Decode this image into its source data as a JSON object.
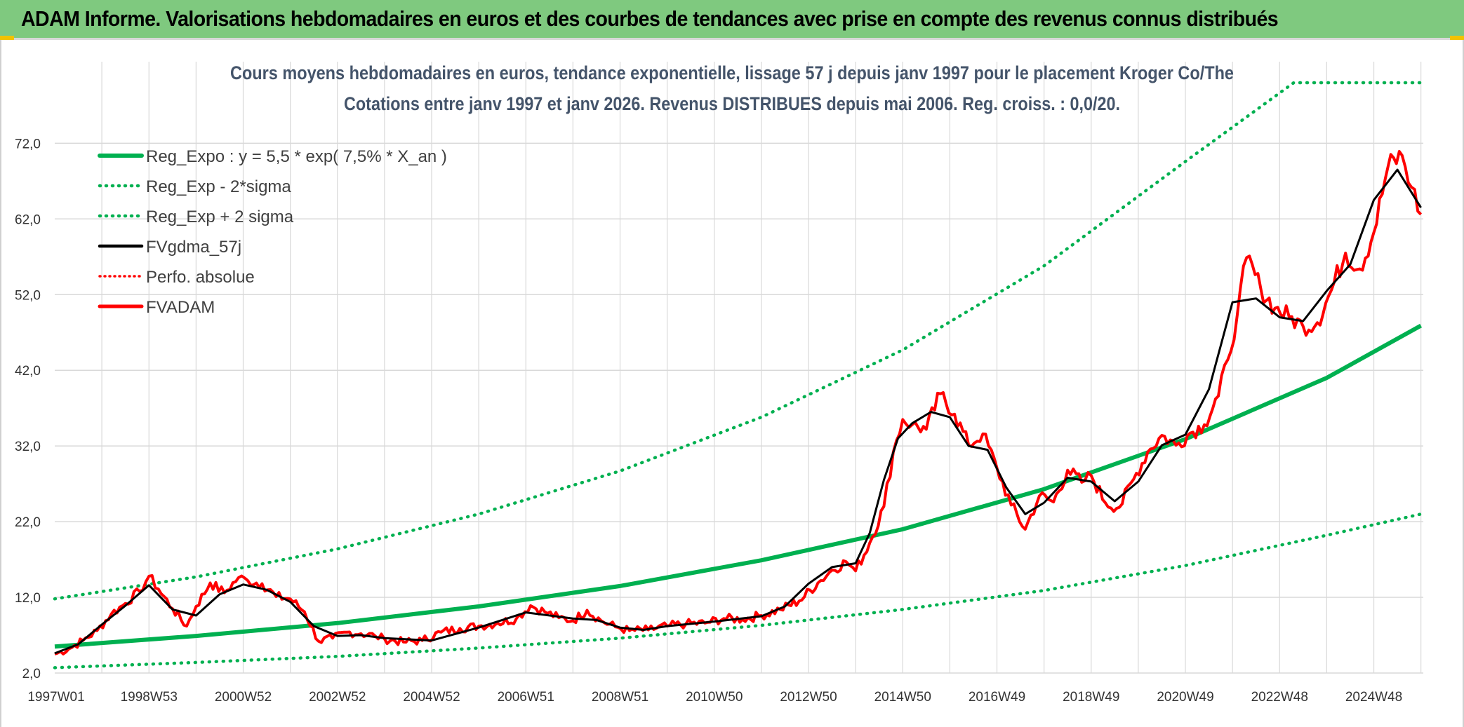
{
  "header": {
    "title": "ADAM Informe. Valorisations hebdomadaires en euros et des courbes de tendances avec prise en compte des revenus connus distribués"
  },
  "colors": {
    "header_bg": "#7fc97f",
    "reg_expo": "#00b050",
    "sigma": "#00b050",
    "fvgdma": "#000000",
    "perfo": "#ff0000",
    "fvadam": "#ff0000",
    "grid": "#d9d9d9"
  },
  "chart_data": {
    "type": "line",
    "title_line1": "Cours moyens hebdomadaires en euros, tendance exponentielle, lissage 57 j depuis janv 1997 pour le placement Kroger Co/The",
    "title_line2": "Cotations entre janv 1997 et janv 2026. Revenus DISTRIBUES depuis mai 2006. Reg. croiss. : 0,0/20.",
    "ylim": [
      2,
      80
    ],
    "xlim": [
      1997.0,
      2026.05
    ],
    "y_ticks": [
      "2,0",
      "12,0",
      "22,0",
      "32,0",
      "42,0",
      "52,0",
      "62,0",
      "72,0"
    ],
    "y_tick_values": [
      2,
      12,
      22,
      32,
      42,
      52,
      62,
      72
    ],
    "x_ticks": [
      "1997W01",
      "1998W53",
      "2000W52",
      "2002W52",
      "2004W52",
      "2006W51",
      "2008W51",
      "2010W50",
      "2012W50",
      "2014W50",
      "2016W49",
      "2018W49",
      "2020W49",
      "2022W48",
      "2024W48"
    ],
    "x_tick_values": [
      1997.0,
      1999.0,
      2001.0,
      2003.0,
      2005.0,
      2007.0,
      2009.0,
      2011.0,
      2013.0,
      2015.0,
      2017.0,
      2019.0,
      2021.0,
      2023.0,
      2025.0
    ],
    "legend": [
      {
        "label": "Reg_Expo : y = 5,5 * exp( 7,5% *  X_an )",
        "style": "solid-green"
      },
      {
        "label": "Reg_Exp - 2*sigma",
        "style": "dotted-green"
      },
      {
        "label": "Reg_Exp + 2 sigma",
        "style": "dotted-green"
      },
      {
        "label": "FVgdma_57j",
        "style": "solid-black"
      },
      {
        "label": "Perfo. absolue",
        "style": "dotted-red"
      },
      {
        "label": "FVADAM",
        "style": "solid-red"
      }
    ],
    "series": [
      {
        "name": "Reg_Expo",
        "x": [
          1997.0,
          2000.0,
          2003.0,
          2006.0,
          2009.0,
          2012.0,
          2015.0,
          2018.0,
          2021.0,
          2024.0,
          2026.0
        ],
        "values": [
          5.5,
          6.9,
          8.6,
          10.8,
          13.5,
          16.9,
          21.0,
          26.3,
          32.9,
          41.0,
          47.9
        ]
      },
      {
        "name": "Reg_Exp - 2*sigma",
        "x": [
          1997.0,
          2000.0,
          2003.0,
          2006.0,
          2009.0,
          2012.0,
          2015.0,
          2018.0,
          2021.0,
          2024.0,
          2026.0
        ],
        "values": [
          2.7,
          3.4,
          4.2,
          5.3,
          6.6,
          8.3,
          10.4,
          12.9,
          16.2,
          20.2,
          23.0
        ]
      },
      {
        "name": "Reg_Exp + 2 sigma",
        "x": [
          1997.0,
          2000.0,
          2003.0,
          2006.0,
          2009.0,
          2012.0,
          2015.0,
          2018.0,
          2021.0,
          2023.3,
          2024.0,
          2026.0
        ],
        "values": [
          11.8,
          14.7,
          18.4,
          23.0,
          28.7,
          35.8,
          44.7,
          55.8,
          69.6,
          80.0,
          80.0,
          80.0
        ]
      },
      {
        "name": "FVADAM",
        "x": [
          1997.0,
          1997.3,
          1997.6,
          1997.9,
          1998.2,
          1998.5,
          1998.8,
          1999.0,
          1999.2,
          1999.5,
          1999.8,
          2000.0,
          2000.3,
          2000.6,
          2000.9,
          2001.1,
          2001.4,
          2001.7,
          2002.0,
          2002.3,
          2002.6,
          2002.9,
          2003.2,
          2003.5,
          2003.8,
          2004.0,
          2004.4,
          2004.8,
          2005.2,
          2005.6,
          2006.0,
          2006.4,
          2006.8,
          2007.1,
          2007.4,
          2007.7,
          2008.0,
          2008.3,
          2008.6,
          2008.9,
          2009.2,
          2009.6,
          2010.0,
          2010.4,
          2010.8,
          2011.2,
          2011.6,
          2012.0,
          2012.4,
          2012.8,
          2013.2,
          2013.5,
          2013.8,
          2014.0,
          2014.3,
          2014.6,
          2014.8,
          2015.0,
          2015.2,
          2015.5,
          2015.8,
          2016.1,
          2016.4,
          2016.7,
          2017.0,
          2017.3,
          2017.6,
          2017.9,
          2018.2,
          2018.5,
          2018.8,
          2019.0,
          2019.3,
          2019.6,
          2019.9,
          2020.2,
          2020.5,
          2020.8,
          2021.1,
          2021.4,
          2021.7,
          2021.9,
          2022.1,
          2022.3,
          2022.6,
          2022.9,
          2023.2,
          2023.5,
          2023.8,
          2024.1,
          2024.4,
          2024.7,
          2025.0,
          2025.3,
          2025.6,
          2025.8,
          2026.0
        ],
        "values": [
          4.5,
          5.2,
          6.3,
          7.6,
          9.8,
          11.2,
          12.8,
          14.8,
          13.1,
          10.5,
          8.2,
          10.8,
          13.9,
          12.6,
          14.6,
          14.2,
          13.8,
          12.1,
          11.8,
          10.1,
          6.2,
          6.6,
          7.4,
          7.2,
          6.9,
          6.5,
          6.1,
          6.3,
          7.4,
          7.9,
          8.2,
          8.6,
          9.2,
          10.9,
          10.1,
          9.3,
          8.9,
          10.3,
          8.9,
          8.1,
          7.6,
          7.7,
          8.2,
          8.5,
          8.6,
          9.2,
          9.1,
          9.6,
          10.4,
          11.5,
          13.9,
          15.6,
          16.7,
          15.5,
          19.2,
          24.0,
          31.2,
          35.5,
          34.8,
          34.2,
          38.9,
          36.2,
          32.1,
          33.6,
          29.1,
          24.2,
          21.0,
          25.4,
          24.6,
          28.8,
          27.2,
          28.1,
          24.5,
          23.9,
          27.6,
          31.2,
          33.4,
          32.1,
          33.7,
          34.8,
          38.6,
          43.4,
          49.3,
          56.9,
          52.8,
          50.2,
          49.1,
          47.8,
          48.3,
          52.6,
          57.5,
          55.4,
          60.2,
          68.9,
          70.4,
          66.2,
          62.6
        ]
      },
      {
        "name": "FVgdma_57j",
        "x": [
          1997.0,
          1997.5,
          1998.0,
          1998.5,
          1999.0,
          1999.5,
          2000.0,
          2000.5,
          2001.0,
          2001.5,
          2002.0,
          2002.5,
          2003.0,
          2003.5,
          2004.0,
          2005.0,
          2006.0,
          2007.0,
          2008.0,
          2008.5,
          2009.0,
          2009.5,
          2010.0,
          2011.0,
          2012.0,
          2012.5,
          2013.0,
          2013.5,
          2014.0,
          2014.3,
          2014.6,
          2014.9,
          2015.2,
          2015.6,
          2016.0,
          2016.4,
          2016.8,
          2017.2,
          2017.6,
          2018.0,
          2018.5,
          2019.0,
          2019.5,
          2020.0,
          2020.5,
          2021.0,
          2021.5,
          2022.0,
          2022.5,
          2023.0,
          2023.5,
          2024.0,
          2024.5,
          2025.0,
          2025.5,
          2026.0
        ],
        "values": [
          4.6,
          5.8,
          8.4,
          10.9,
          13.6,
          10.4,
          9.6,
          12.4,
          13.7,
          13.0,
          11.4,
          8.2,
          6.9,
          7.0,
          6.6,
          6.3,
          8.0,
          10.0,
          9.2,
          9.0,
          8.0,
          7.7,
          8.2,
          8.8,
          9.5,
          10.8,
          13.8,
          16.0,
          16.5,
          20.5,
          27.5,
          33.0,
          35.0,
          36.5,
          35.8,
          32.0,
          31.5,
          26.5,
          23.0,
          24.5,
          27.8,
          27.3,
          24.7,
          27.3,
          32.1,
          33.5,
          39.5,
          51.0,
          51.5,
          49.0,
          48.5,
          52.5,
          56.0,
          64.5,
          68.5,
          63.5
        ]
      }
    ]
  }
}
